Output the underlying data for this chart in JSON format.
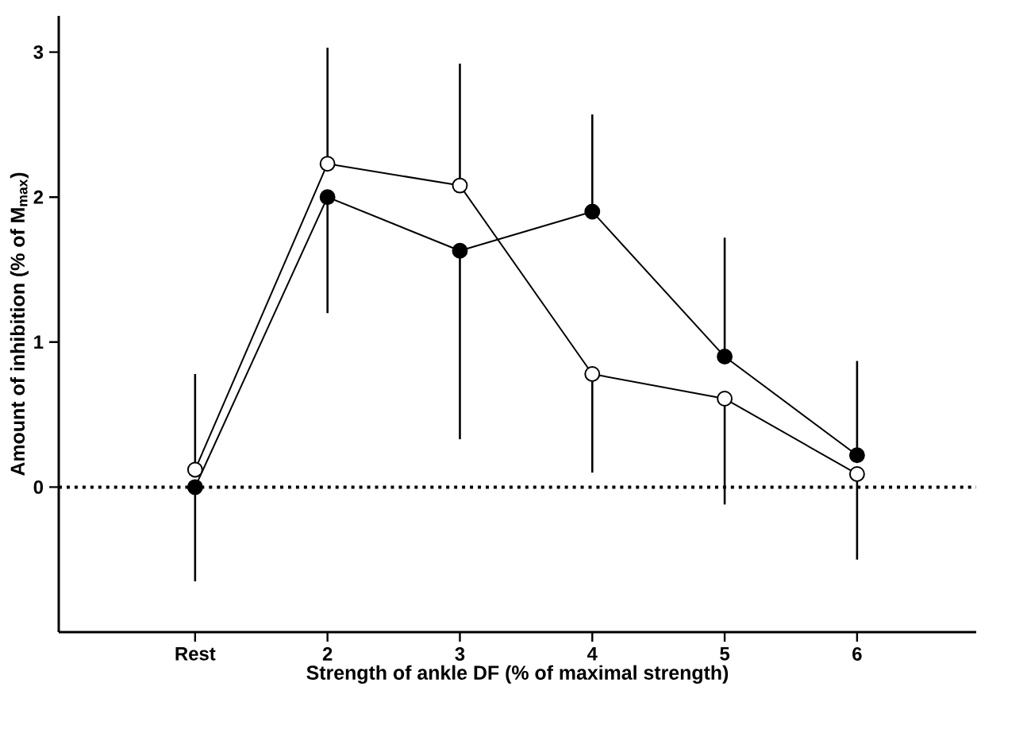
{
  "chart_data": {
    "type": "line",
    "xlabel": "Strength of ankle DF (% of maximal strength)",
    "ylabel": "Amount of inhibition (% of M$_{max}$)",
    "categories": [
      "Rest",
      "2",
      "3",
      "4",
      "5",
      "6"
    ],
    "series": [
      {
        "color": "#000000",
        "values": [
          0,
          2.0,
          1.63,
          1.9,
          0.9,
          0.22
        ],
        "errors": [
          [
            -0.65,
            0
          ],
          [
            1.2,
            2.0
          ],
          [
            0.33,
            1.63
          ],
          [
            1.9,
            2.57
          ],
          [
            0.9,
            1.72
          ],
          [
            0.22,
            0.87
          ]
        ]
      },
      {
        "color": "#ffffff",
        "values": [
          0.12,
          2.23,
          2.08,
          0.78,
          0.61,
          0.09
        ],
        "errors": [
          [
            0.12,
            0.78
          ],
          [
            2.23,
            3.03
          ],
          [
            2.08,
            2.92
          ],
          [
            0.1,
            0.78
          ],
          [
            -0.12,
            0.61
          ],
          [
            -0.5,
            0.09
          ]
        ]
      }
    ],
    "ylim": [
      -1,
      3.25
    ],
    "yticks": [
      0,
      1,
      2,
      3
    ],
    "ref_lines": [
      {
        "axis": "y",
        "value": 0,
        "color": "#000000",
        "line_style": "dotted"
      }
    ],
    "marker": "circle",
    "line_style": "solid"
  }
}
